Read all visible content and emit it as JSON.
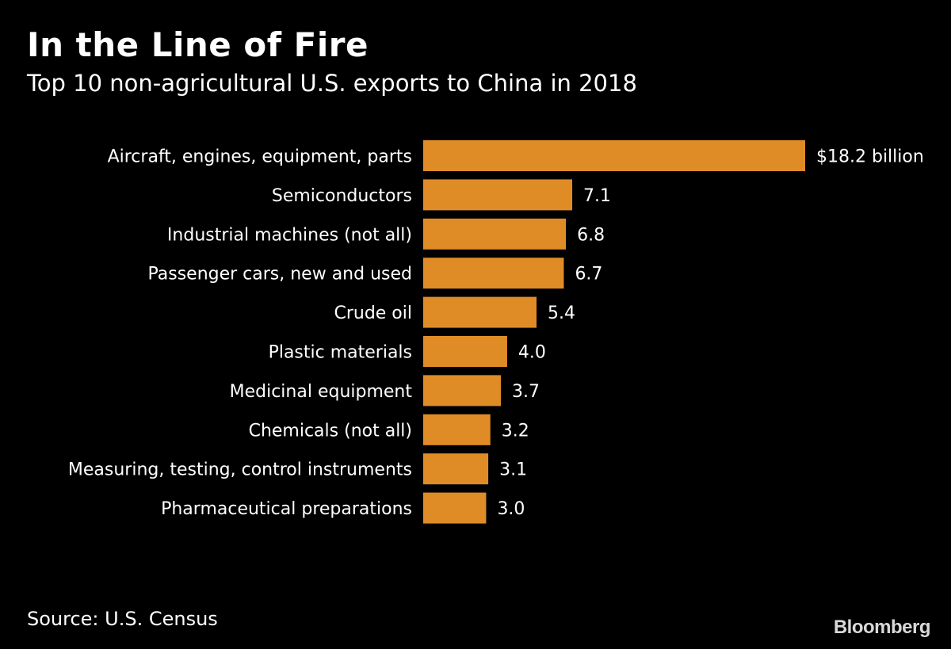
{
  "header": {
    "title": "In the Line of Fire",
    "subtitle": "Top 10 non-agricultural U.S. exports to China in 2018"
  },
  "footer": {
    "source": "Source: U.S. Census",
    "brand": "Bloomberg"
  },
  "colors": {
    "background": "#000000",
    "bar": "#e08c26",
    "text": "#ffffff"
  },
  "chart_data": {
    "type": "bar",
    "orientation": "horizontal",
    "title": "In the Line of Fire",
    "subtitle": "Top 10 non-agricultural U.S. exports to China in 2018",
    "xlabel": "",
    "ylabel": "",
    "unit": "$ billion",
    "grid": false,
    "categories": [
      "Aircraft, engines, equipment, parts",
      "Semiconductors",
      "Industrial machines (not all)",
      "Passenger cars, new and used",
      "Crude oil",
      "Plastic materials",
      "Medicinal equipment",
      "Chemicals (not all)",
      "Measuring, testing, control instruments",
      "Pharmaceutical preparations"
    ],
    "values": [
      18.2,
      7.1,
      6.8,
      6.7,
      5.4,
      4.0,
      3.7,
      3.2,
      3.1,
      3.0
    ],
    "value_labels": [
      "$18.2 billion",
      "7.1",
      "6.8",
      "6.7",
      "5.4",
      "4.0",
      "3.7",
      "3.2",
      "3.1",
      "3.0"
    ],
    "xlim": [
      0,
      18.2
    ]
  }
}
